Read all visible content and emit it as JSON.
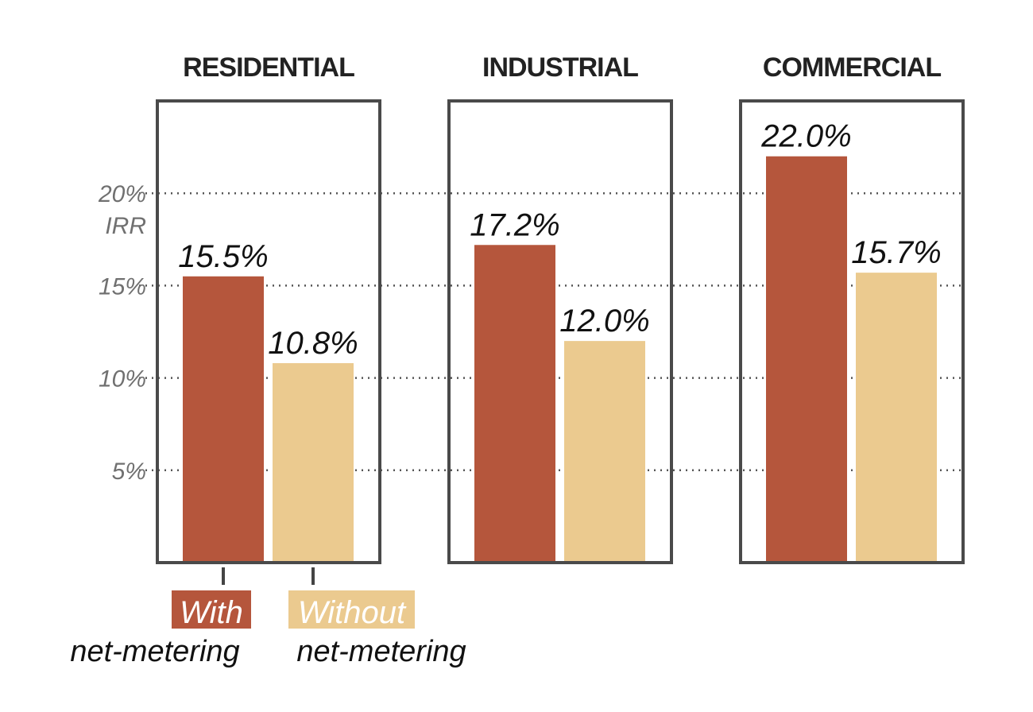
{
  "chart_data": {
    "type": "bar",
    "ylabel": "IRR",
    "ylim": [
      0,
      25
    ],
    "grid": true,
    "y_ticks": [
      {
        "value": 5,
        "label": "5%"
      },
      {
        "value": 10,
        "label": "10%"
      },
      {
        "value": 15,
        "label": "15%"
      },
      {
        "value": 20,
        "label": "20%"
      }
    ],
    "panels": [
      {
        "title": "RESIDENTIAL",
        "values": [
          15.5,
          10.8
        ],
        "labels": [
          "15.5%",
          "10.8%"
        ]
      },
      {
        "title": "INDUSTRIAL",
        "values": [
          17.2,
          12.0
        ],
        "labels": [
          "17.2%",
          "12.0%"
        ]
      },
      {
        "title": "COMMERCIAL",
        "values": [
          22.0,
          15.7
        ],
        "labels": [
          "22.0%",
          "15.7%"
        ]
      }
    ],
    "series": [
      {
        "name": "With net-metering",
        "legend_box": "With",
        "legend_sub": "net-metering",
        "color": "#b5563c"
      },
      {
        "name": "Without net-metering",
        "legend_box": "Without",
        "legend_sub": "net-metering",
        "color": "#ebca8f"
      }
    ]
  }
}
